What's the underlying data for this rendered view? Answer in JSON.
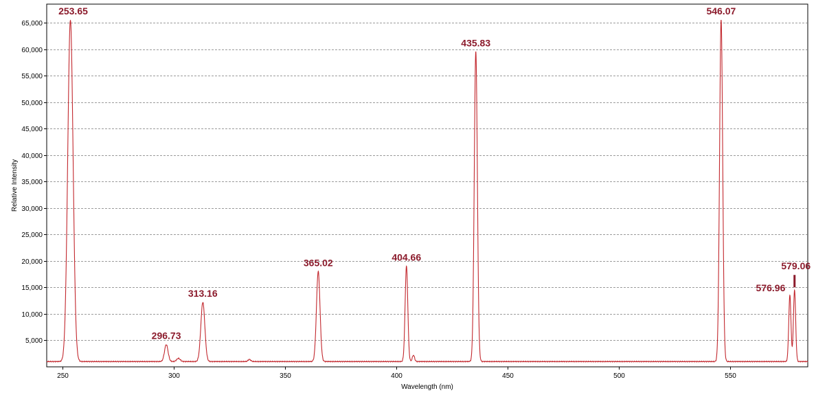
{
  "chart_data": {
    "type": "line",
    "title": "",
    "xlabel": "Wavelength (nm)",
    "ylabel": "Relative Intensity",
    "xlim": [
      243,
      585
    ],
    "ylim": [
      0,
      68500
    ],
    "x_ticks": [
      250,
      300,
      350,
      400,
      450,
      500,
      550
    ],
    "y_ticks": [
      5000,
      10000,
      15000,
      20000,
      25000,
      30000,
      35000,
      40000,
      45000,
      50000,
      55000,
      60000,
      65000
    ],
    "grid": true,
    "baseline": 1000,
    "peaks": [
      {
        "label": "253.65",
        "x": 253.65,
        "y": 65500,
        "width": 1.2
      },
      {
        "label": "296.73",
        "x": 296.73,
        "y": 4200,
        "width": 0.8
      },
      {
        "label": "313.16",
        "x": 313.16,
        "y": 12200,
        "width": 0.9
      },
      {
        "label": "365.02",
        "x": 365.02,
        "y": 18000,
        "width": 0.8
      },
      {
        "label": "404.66",
        "x": 404.66,
        "y": 19000,
        "width": 0.6
      },
      {
        "label": "435.83",
        "x": 435.83,
        "y": 59500,
        "width": 0.7
      },
      {
        "label": "546.07",
        "x": 546.07,
        "y": 65500,
        "width": 0.7
      },
      {
        "label": "576.96",
        "x": 576.96,
        "y": 13500,
        "width": 0.5
      },
      {
        "label": "579.06",
        "x": 579.06,
        "y": 14500,
        "width": 0.5
      }
    ],
    "minor_peaks": [
      {
        "x": 302.2,
        "y": 1600,
        "width": 0.8
      },
      {
        "x": 334.1,
        "y": 1400,
        "width": 0.6
      },
      {
        "x": 407.8,
        "y": 2200,
        "width": 0.5
      }
    ],
    "colors": {
      "line": "#c2272d",
      "label": "#8b1a2b",
      "grid": "#7a7a7a",
      "axis": "#000000"
    }
  }
}
